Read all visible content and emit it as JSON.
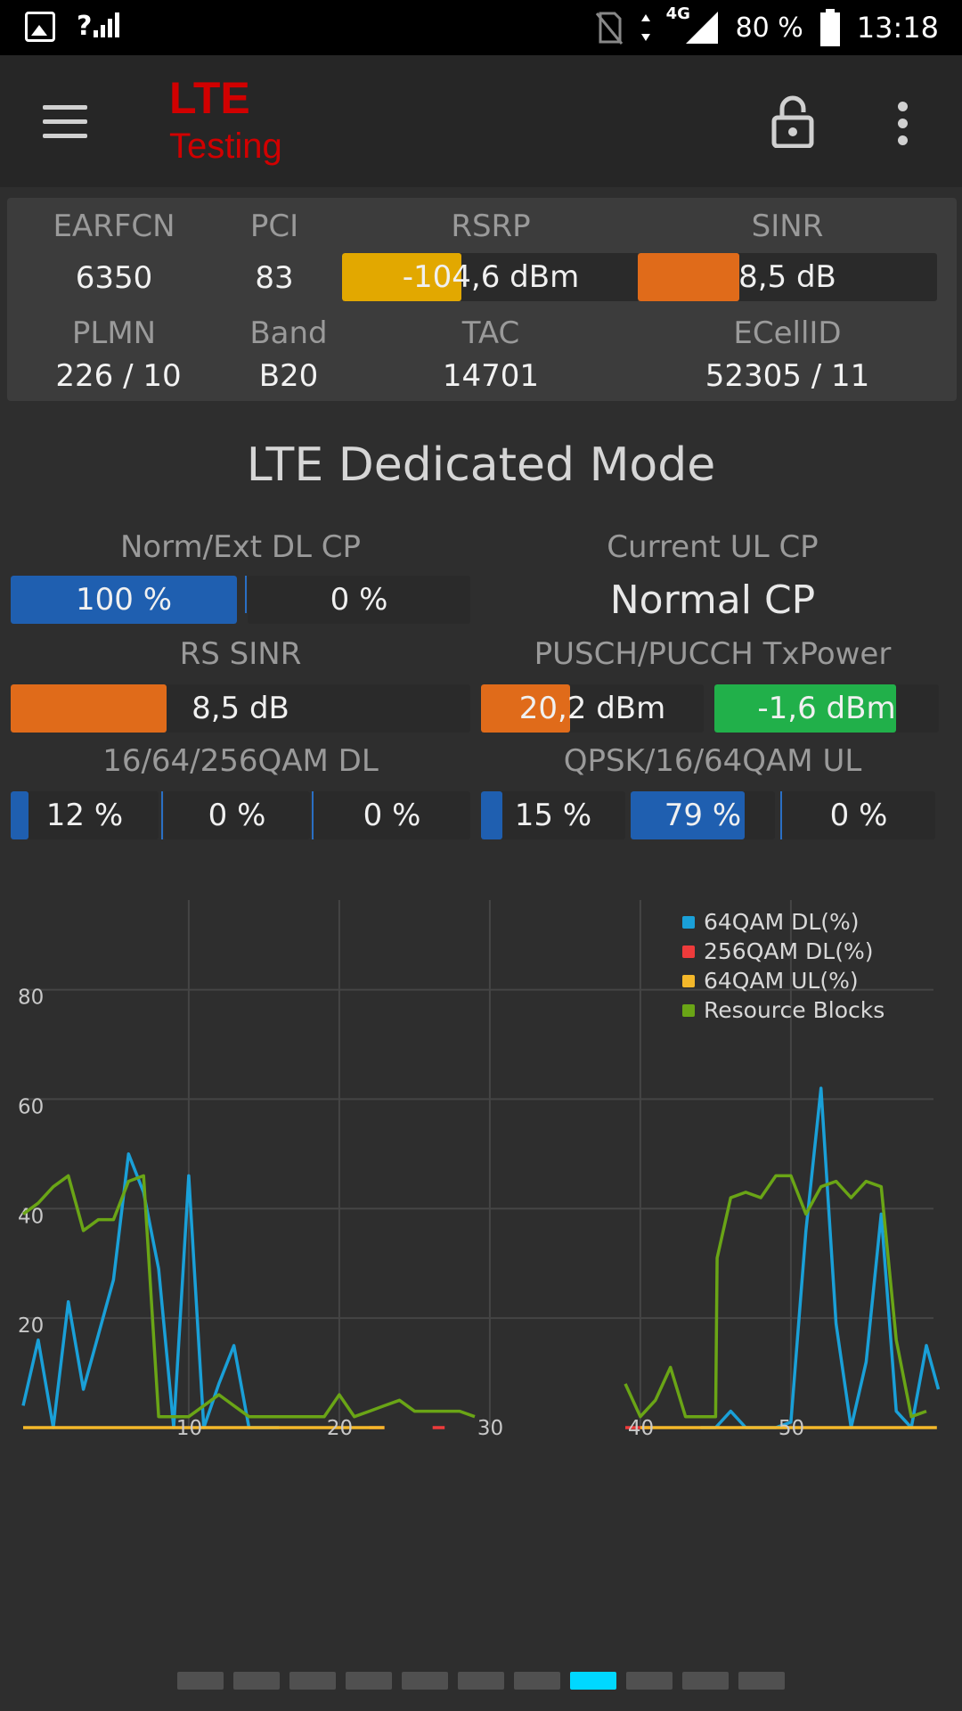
{
  "status_bar": {
    "battery": "80 %",
    "time": "13:18",
    "network": "4G",
    "signal_label": "?",
    "icons": [
      "image-icon",
      "signal-icon",
      "no-sim-icon",
      "data-arrows-icon",
      "battery-icon"
    ]
  },
  "app_bar": {
    "title_line1": "LTE",
    "title_line2": "Testing",
    "icons": [
      "menu-icon",
      "lock-icon",
      "more-vert-icon"
    ]
  },
  "info": {
    "earfcn_label": "EARFCN",
    "earfcn": "6350",
    "pci_label": "PCI",
    "pci": "83",
    "rsrp_label": "RSRP",
    "rsrp": "-104,6 dBm",
    "rsrp_level": 0.4,
    "sinr_label": "SINR",
    "sinr": "8,5 dB",
    "sinr_level": 0.34,
    "plmn_label": "PLMN",
    "plmn": "226 / 10",
    "band_label": "Band",
    "band": "B20",
    "tac_label": "TAC",
    "tac": "14701",
    "ecellid_label": "ECellID",
    "ecellid": "52305 / 11"
  },
  "mode_title": "LTE Dedicated Mode",
  "metrics": {
    "cp_label": "Norm/Ext DL CP",
    "cp_norm": "100 %",
    "cp_norm_level": 1.0,
    "cp_ext": "0 %",
    "cp_ext_level": 0,
    "ul_cp_label": "Current UL CP",
    "ul_cp_value": "Normal CP",
    "rs_sinr_label": "RS SINR",
    "rs_sinr": "8,5 dB",
    "rs_sinr_level": 0.34,
    "txpower_label": "PUSCH/PUCCH TxPower",
    "pusch": "20,2 dBm",
    "pusch_level": 0.4,
    "pucch": "-1,6 dBm",
    "pucch_level": 0.81,
    "qam_dl_label": "16/64/256QAM DL",
    "qam16_dl": "12 %",
    "qam16_dl_level": 0.12,
    "qam64_dl": "0 %",
    "qam64_dl_level": 0,
    "qam256_dl": "0 %",
    "qam256_dl_level": 0,
    "qam_ul_label": "QPSK/16/64QAM UL",
    "qpsk_ul": "15 %",
    "qpsk_ul_level": 0.15,
    "qam16_ul": "79 %",
    "qam16_ul_level": 0.79,
    "qam64_ul": "0 %",
    "qam64_ul_level": 0
  },
  "colors": {
    "blue": "#1f5fb0",
    "orange": "#e06b1a",
    "yellow": "#e2a800",
    "green": "#21b04a",
    "line_blue": "#1aa0d8",
    "line_red": "#ee3b3b",
    "line_yellow": "#f4b82a",
    "line_green": "#6aa516"
  },
  "chart_data": {
    "type": "line",
    "ylim": [
      0,
      98
    ],
    "xlim": [
      -1,
      59
    ],
    "yticks": [
      20,
      40,
      60,
      80
    ],
    "xticks": [
      10,
      20,
      30,
      40,
      50
    ],
    "grid": true,
    "legend_position": "top-right",
    "series": [
      {
        "name": "64QAM DL(%)",
        "color": "#1aa0d8",
        "segments": [
          [
            [
              -1,
              4
            ],
            [
              0,
              16
            ],
            [
              1,
              0
            ],
            [
              2,
              23
            ],
            [
              3,
              7
            ],
            [
              4,
              17
            ],
            [
              5,
              27
            ],
            [
              6,
              50
            ],
            [
              7,
              43
            ],
            [
              8,
              29
            ],
            [
              9,
              0
            ],
            [
              10,
              46
            ],
            [
              11,
              0
            ],
            [
              12,
              8
            ],
            [
              13,
              15
            ],
            [
              14,
              0
            ],
            [
              15,
              0
            ],
            [
              16,
              0
            ]
          ],
          [
            [
              44,
              0
            ],
            [
              45,
              0
            ],
            [
              46,
              3
            ],
            [
              47,
              0
            ],
            [
              48,
              0
            ],
            [
              49,
              0
            ],
            [
              50,
              1
            ],
            [
              51,
              36
            ],
            [
              52,
              62
            ],
            [
              53,
              19
            ],
            [
              54,
              0
            ],
            [
              55,
              12
            ],
            [
              56,
              39
            ],
            [
              57,
              3
            ],
            [
              58,
              0
            ],
            [
              59,
              15
            ],
            [
              59.8,
              7
            ]
          ]
        ]
      },
      {
        "name": "256QAM DL(%)",
        "color": "#ee3b3b",
        "segments": [
          [
            [
              22,
              0
            ],
            [
              23,
              0
            ]
          ],
          [
            [
              26.2,
              0
            ],
            [
              27,
              0
            ]
          ],
          [
            [
              39,
              0
            ],
            [
              40.8,
              0
            ]
          ]
        ]
      },
      {
        "name": "64QAM UL(%)",
        "color": "#f4b82a",
        "segments": [
          [
            [
              -1,
              0
            ],
            [
              23,
              0
            ]
          ],
          [
            [
              40,
              0
            ],
            [
              59.7,
              0
            ]
          ]
        ]
      },
      {
        "name": "Resource Blocks",
        "color": "#6aa516",
        "segments": [
          [
            [
              -1,
              39
            ],
            [
              0,
              41
            ],
            [
              1,
              44
            ],
            [
              2,
              46
            ],
            [
              3,
              36
            ],
            [
              4,
              38
            ],
            [
              5,
              38
            ],
            [
              6,
              45
            ],
            [
              7,
              46
            ],
            [
              8,
              2
            ],
            [
              9,
              2
            ],
            [
              10,
              2
            ],
            [
              11,
              4
            ],
            [
              12,
              6
            ],
            [
              13,
              4
            ],
            [
              14,
              2
            ],
            [
              15,
              2
            ],
            [
              16,
              2
            ],
            [
              17,
              2
            ],
            [
              18,
              2
            ],
            [
              19,
              2
            ],
            [
              20,
              6
            ],
            [
              21,
              2
            ],
            [
              22,
              3
            ],
            [
              23,
              4
            ],
            [
              24,
              5
            ],
            [
              25,
              3
            ],
            [
              26,
              3
            ],
            [
              27,
              3
            ],
            [
              28,
              3
            ],
            [
              29,
              2
            ]
          ],
          [
            [
              39,
              8
            ],
            [
              40,
              2
            ],
            [
              41,
              5
            ],
            [
              42,
              11
            ],
            [
              43,
              2
            ],
            [
              44,
              2
            ],
            [
              45,
              2
            ],
            [
              45.1,
              31
            ],
            [
              46,
              42
            ],
            [
              47,
              43
            ],
            [
              48,
              42
            ],
            [
              49,
              46
            ],
            [
              50,
              46
            ],
            [
              51,
              39
            ],
            [
              52,
              44
            ],
            [
              53,
              45
            ],
            [
              54,
              42
            ],
            [
              55,
              45
            ],
            [
              56,
              44
            ],
            [
              57,
              16
            ],
            [
              58,
              2
            ],
            [
              59,
              3
            ]
          ]
        ]
      }
    ]
  },
  "pager": {
    "count": 11,
    "active": 7
  }
}
